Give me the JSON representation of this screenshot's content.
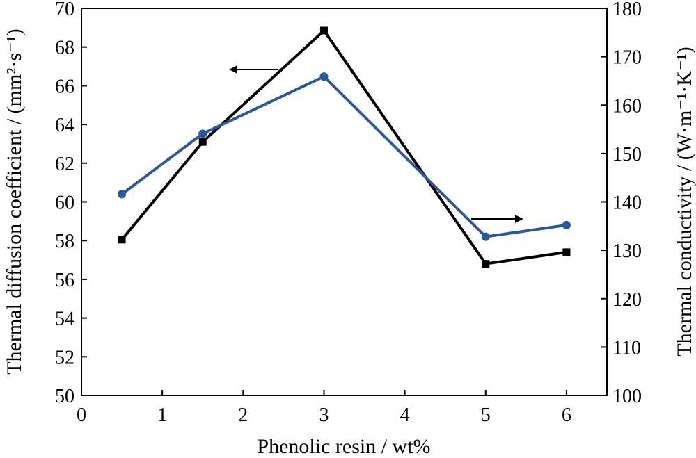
{
  "chart_data": {
    "type": "line",
    "xlabel": "Phenolic resin / wt%",
    "ylabel_left": "Thermal diffusion coefficient / (mm²·s⁻¹)",
    "ylabel_right": "Thermal conductivity / (W·m⁻¹·K⁻¹)",
    "xlim": [
      0,
      6.5
    ],
    "ylim_left": [
      50,
      70
    ],
    "ylim_right": [
      100,
      180
    ],
    "xticks": [
      "0",
      "1",
      "2",
      "3",
      "4",
      "5",
      "6"
    ],
    "yticks_left": [
      "50",
      "52",
      "54",
      "56",
      "58",
      "60",
      "62",
      "64",
      "66",
      "68",
      "70"
    ],
    "yticks_right": [
      "100",
      "110",
      "120",
      "130",
      "140",
      "150",
      "160",
      "170",
      "180"
    ],
    "grid": false,
    "series": [
      {
        "axis": "left",
        "color": "#000000",
        "marker": "square",
        "x": [
          0.5,
          1.5,
          3,
          5,
          6
        ],
        "y": [
          58.05,
          63.1,
          68.85,
          56.8,
          57.4
        ]
      },
      {
        "axis": "right",
        "color": "#2b579a",
        "marker": "circle",
        "x": [
          0.5,
          1.5,
          3,
          5,
          6
        ],
        "y": [
          141.6,
          154.1,
          165.9,
          132.8,
          135.2
        ]
      }
    ],
    "annotations": [
      {
        "type": "arrow",
        "direction": "left",
        "points_to": "left-axis"
      },
      {
        "type": "arrow",
        "direction": "right",
        "points_to": "right-axis"
      }
    ]
  }
}
